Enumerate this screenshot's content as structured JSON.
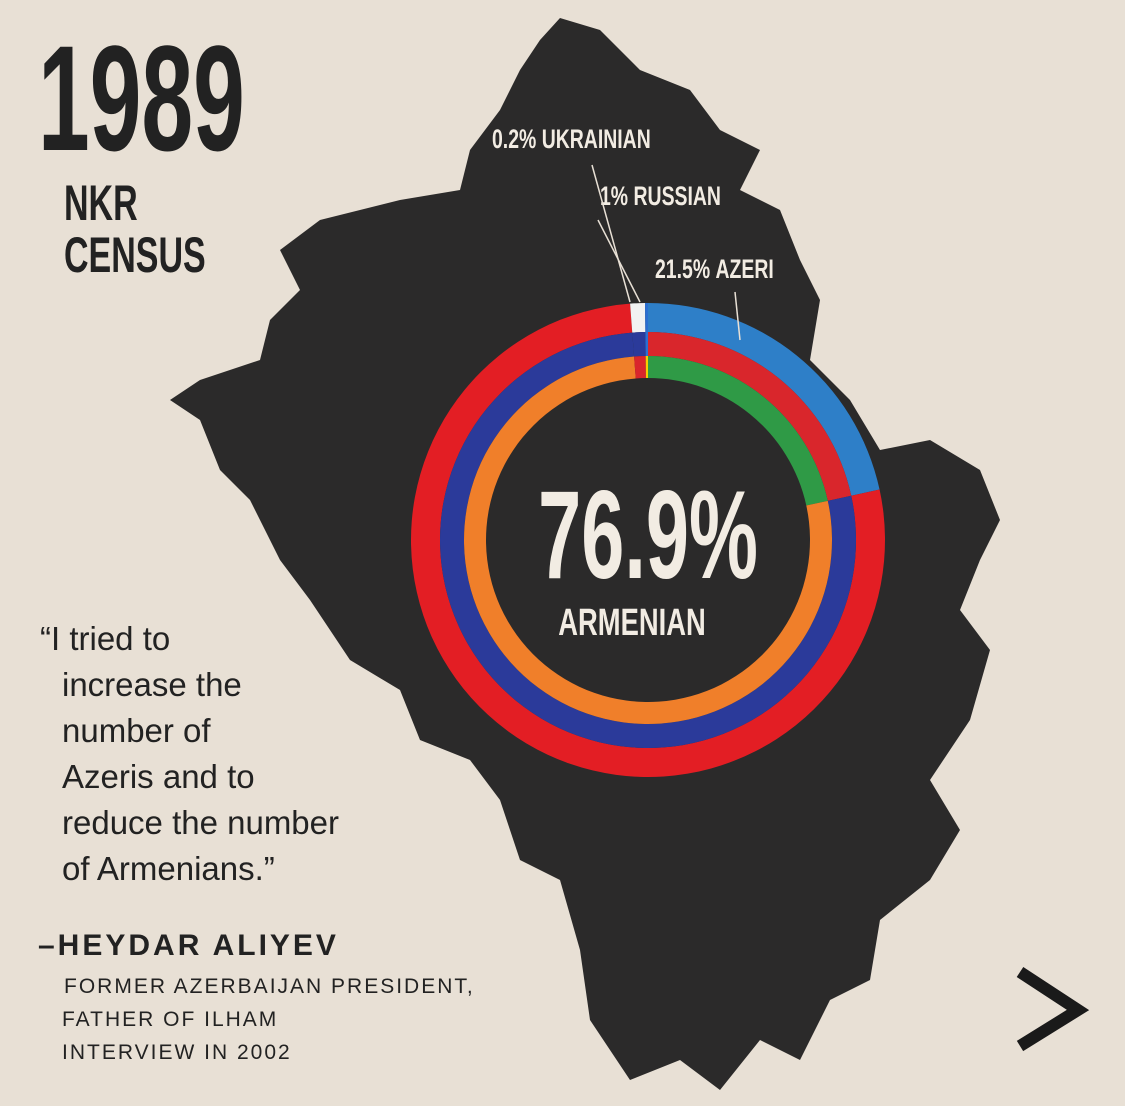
{
  "header": {
    "year": "1989",
    "subtitle_lines": [
      "NKR",
      "CENSUS"
    ]
  },
  "chart_data": {
    "type": "donut",
    "categories": [
      "AZERI",
      "ARMENIAN",
      "RUSSIAN",
      "UKRAINIAN"
    ],
    "values": [
      21.5,
      76.9,
      1,
      0.2
    ],
    "value_labels": [
      "21.5%",
      "76.9%",
      "1%",
      "0.2%"
    ],
    "colors": [
      [
        "#2e7fc8",
        "#d9262c",
        "#2f9a46"
      ],
      [
        "#e31e24",
        "#2b3a9a",
        "#f07f2a"
      ],
      [
        "#f2f2f2",
        "#2b3a9a",
        "#d9262c"
      ],
      [
        "#2b6fd1",
        "#2b6fd1",
        "#f5d000"
      ]
    ]
  },
  "quote": {
    "lines": [
      "“I tried to",
      "increase the",
      "number of",
      "Azeris and to",
      "reduce the number",
      "of Armenians.”"
    ],
    "author": "–HEYDAR ALIYEV",
    "details": [
      "FORMER AZERBAIJAN PRESIDENT,",
      "FATHER OF ILHAM",
      "INTERVIEW IN 2002"
    ]
  }
}
